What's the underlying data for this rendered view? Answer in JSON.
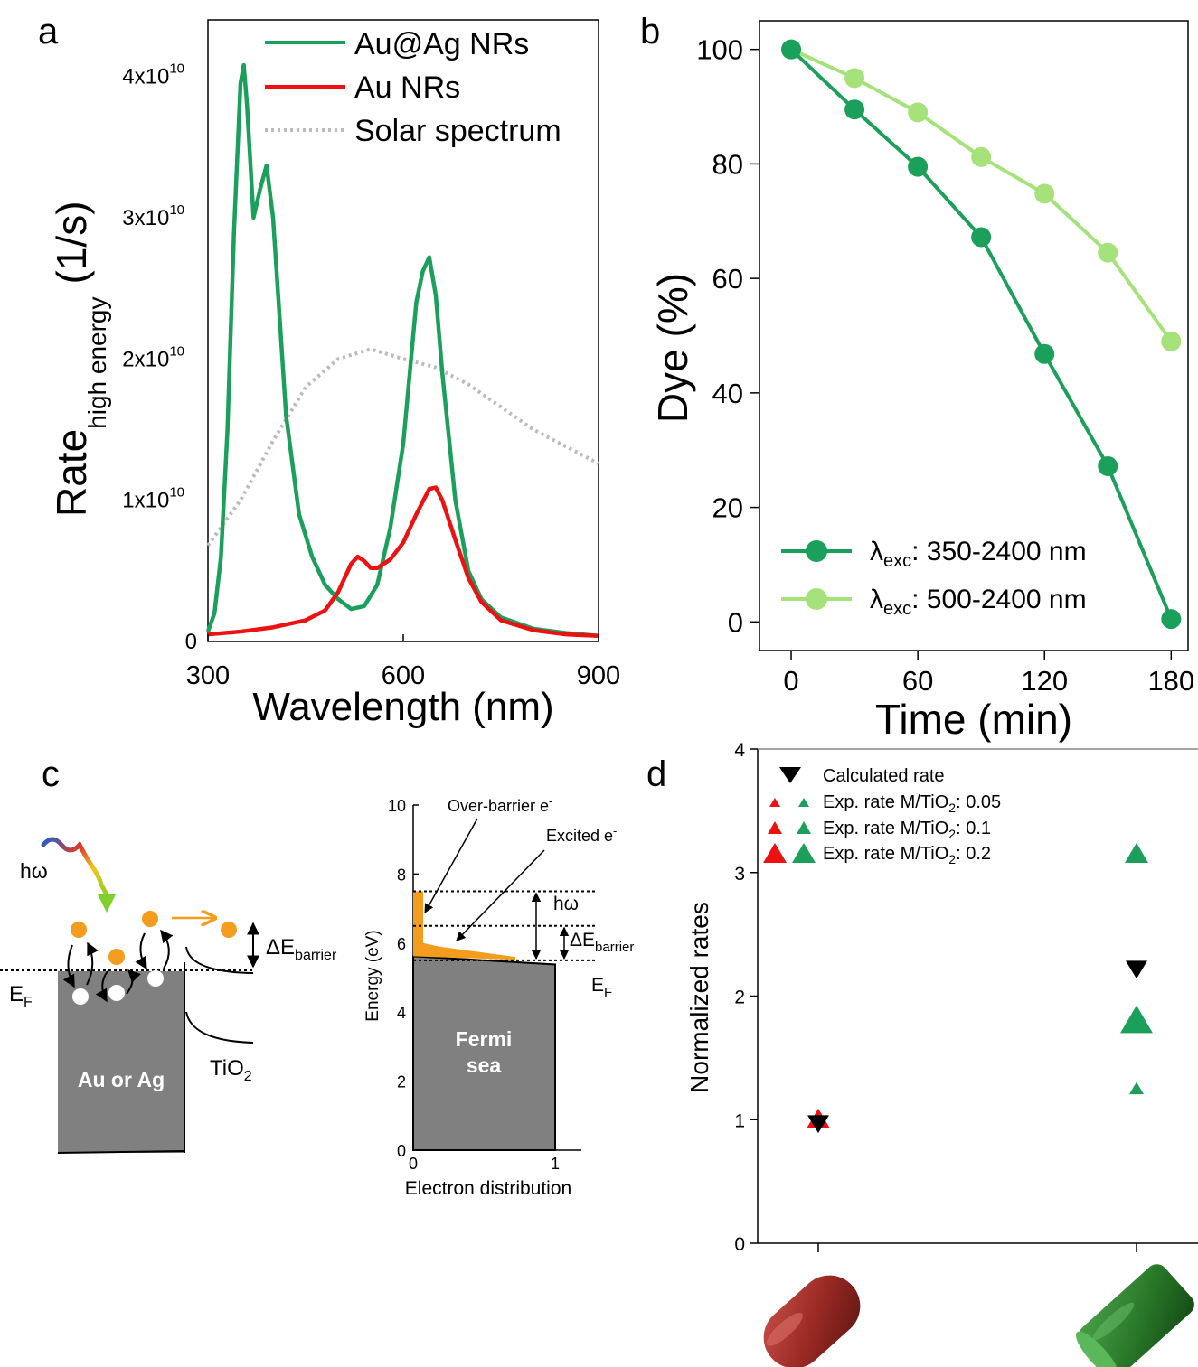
{
  "panel_labels": {
    "a": "a",
    "b": "b",
    "c": "c",
    "d": "d"
  },
  "colors": {
    "green": "#1aa05a",
    "red": "#ee1111",
    "light_green": "#a6e27a",
    "gray_dotted": "#bbbbbb",
    "orange": "#f39c1e",
    "metal_gray": "#808080"
  },
  "chart_data": [
    {
      "panel": "a",
      "type": "line",
      "xlabel": "Wavelength (nm)",
      "ylabel_main": "Rate",
      "ylabel_sub": "high energy",
      "ylabel_unit": "(1/s)",
      "xlim": [
        300,
        900
      ],
      "ylim": [
        0,
        4.4
      ],
      "x_ticks": [
        "300",
        "600",
        "900"
      ],
      "y_ticks": [
        {
          "value": 0,
          "mant": "0",
          "exp": ""
        },
        {
          "value": 1,
          "mant": "1x10",
          "exp": "10"
        },
        {
          "value": 2,
          "mant": "2x10",
          "exp": "10"
        },
        {
          "value": 3,
          "mant": "3x10",
          "exp": "10"
        },
        {
          "value": 4,
          "mant": "4x10",
          "exp": "10"
        }
      ],
      "legend": [
        "Au@Ag NRs",
        "Au NRs",
        "Solar spectrum"
      ],
      "series": [
        {
          "name": "Au@Ag NRs",
          "color": "#1aa05a",
          "style": "solid",
          "x": [
            300,
            310,
            320,
            330,
            340,
            350,
            355,
            360,
            370,
            380,
            390,
            400,
            410,
            420,
            440,
            460,
            480,
            500,
            520,
            540,
            560,
            580,
            600,
            610,
            620,
            630,
            640,
            650,
            660,
            680,
            700,
            720,
            750,
            800,
            850,
            900
          ],
          "y": [
            0.07,
            0.2,
            0.6,
            1.5,
            2.9,
            3.95,
            4.08,
            3.8,
            3.0,
            3.2,
            3.37,
            3.0,
            2.3,
            1.6,
            0.9,
            0.6,
            0.4,
            0.3,
            0.23,
            0.25,
            0.4,
            0.8,
            1.4,
            1.9,
            2.4,
            2.62,
            2.72,
            2.45,
            1.9,
            1.0,
            0.5,
            0.3,
            0.17,
            0.09,
            0.06,
            0.04
          ]
        },
        {
          "name": "Au NRs",
          "color": "#ee1111",
          "style": "solid",
          "x": [
            300,
            350,
            400,
            450,
            480,
            500,
            520,
            530,
            540,
            550,
            560,
            580,
            600,
            620,
            640,
            650,
            660,
            680,
            700,
            720,
            750,
            800,
            850,
            900
          ],
          "y": [
            0.05,
            0.07,
            0.1,
            0.15,
            0.22,
            0.35,
            0.55,
            0.6,
            0.57,
            0.52,
            0.52,
            0.58,
            0.7,
            0.9,
            1.08,
            1.09,
            1.0,
            0.72,
            0.45,
            0.28,
            0.15,
            0.08,
            0.05,
            0.04
          ]
        },
        {
          "name": "Solar spectrum",
          "color": "#bbbbbb",
          "style": "dotted",
          "x": [
            300,
            350,
            400,
            450,
            500,
            550,
            600,
            650,
            700,
            750,
            800,
            850,
            900
          ],
          "y": [
            0.68,
            1.0,
            1.42,
            1.8,
            2.0,
            2.07,
            2.0,
            1.94,
            1.82,
            1.66,
            1.5,
            1.38,
            1.26
          ]
        }
      ]
    },
    {
      "panel": "b",
      "type": "line",
      "xlabel": "Time (min)",
      "ylabel": "Dye (%)",
      "xlim": [
        -15,
        188
      ],
      "ylim": [
        -5,
        105
      ],
      "x_ticks": [
        0,
        60,
        120,
        180
      ],
      "y_ticks": [
        0,
        20,
        40,
        60,
        80,
        100
      ],
      "series": [
        {
          "name_main": "λ",
          "name_sub": "exc",
          "name_rest": ": 350-2400 nm",
          "color": "#1aa05a",
          "x": [
            0,
            30,
            60,
            90,
            120,
            150,
            180
          ],
          "y": [
            100,
            89.5,
            79.5,
            67.2,
            46.8,
            27.2,
            0.5
          ]
        },
        {
          "name_main": "λ",
          "name_sub": "exc",
          "name_rest": ": 500-2400 nm",
          "color": "#a6e27a",
          "x": [
            0,
            30,
            60,
            90,
            120,
            150,
            180
          ],
          "y": [
            100,
            95,
            89,
            81.2,
            74.8,
            64.5,
            49
          ]
        }
      ]
    },
    {
      "panel": "c-right",
      "type": "area",
      "xlabel": "Electron distribution",
      "ylabel": "Energy (eV)",
      "xlim": [
        0,
        1.2
      ],
      "ylim": [
        0,
        10
      ],
      "x_ticks": [
        "0",
        "1"
      ],
      "y_ticks": [
        "0",
        "2",
        "4",
        "6",
        "8",
        "10"
      ],
      "levels": {
        "hw_top": 7.5,
        "barrier": 6.5,
        "fermi": 5.5
      },
      "labels": {
        "over_barrier": "Over-barrier e",
        "over_barrier_sup": "-",
        "excited": "Excited e",
        "excited_sup": "-",
        "hw": "hω",
        "delta_e": "ΔE",
        "delta_e_sub": "barrier",
        "ef": "E",
        "ef_sub": "F",
        "fermi_sea_1": "Fermi",
        "fermi_sea_2": "sea"
      }
    },
    {
      "panel": "d",
      "type": "scatter",
      "ylabel": "Normalized rates",
      "ylim": [
        0,
        4
      ],
      "y_ticks": [
        0,
        1,
        2,
        3,
        4
      ],
      "categories": [
        "Au NRs",
        "Au@Ag NRs"
      ],
      "points": [
        {
          "category": 0,
          "y": 1.0,
          "kind": "exp_0.2",
          "color": "#ee1111"
        },
        {
          "category": 0,
          "y": 0.97,
          "kind": "calculated",
          "color": "#000000"
        },
        {
          "category": 1,
          "y": 3.15,
          "kind": "exp_0.2",
          "color": "#1aa05a"
        },
        {
          "category": 1,
          "y": 2.22,
          "kind": "calculated",
          "color": "#000000"
        },
        {
          "category": 1,
          "y": 1.8,
          "kind": "exp_0.2_large",
          "color": "#1aa05a"
        },
        {
          "category": 1,
          "y": 1.25,
          "kind": "exp_0.05",
          "color": "#1aa05a"
        }
      ],
      "legend": [
        {
          "text": "Calculated rate",
          "sub": "",
          "rest": ""
        },
        {
          "text": "Exp. rate M/TiO",
          "sub": "2",
          "rest": ": 0.05"
        },
        {
          "text": "Exp. rate M/TiO",
          "sub": "2",
          "rest": ": 0.1"
        },
        {
          "text": "Exp. rate M/TiO",
          "sub": "2",
          "rest": ": 0.2"
        }
      ]
    }
  ],
  "schematic_c_left": {
    "photon": "hω",
    "delta_e": "ΔE",
    "delta_e_sub": "barrier",
    "ef": "E",
    "ef_sub": "F",
    "metal": "Au or Ag",
    "tio2": "TiO",
    "tio2_sub": "2"
  }
}
